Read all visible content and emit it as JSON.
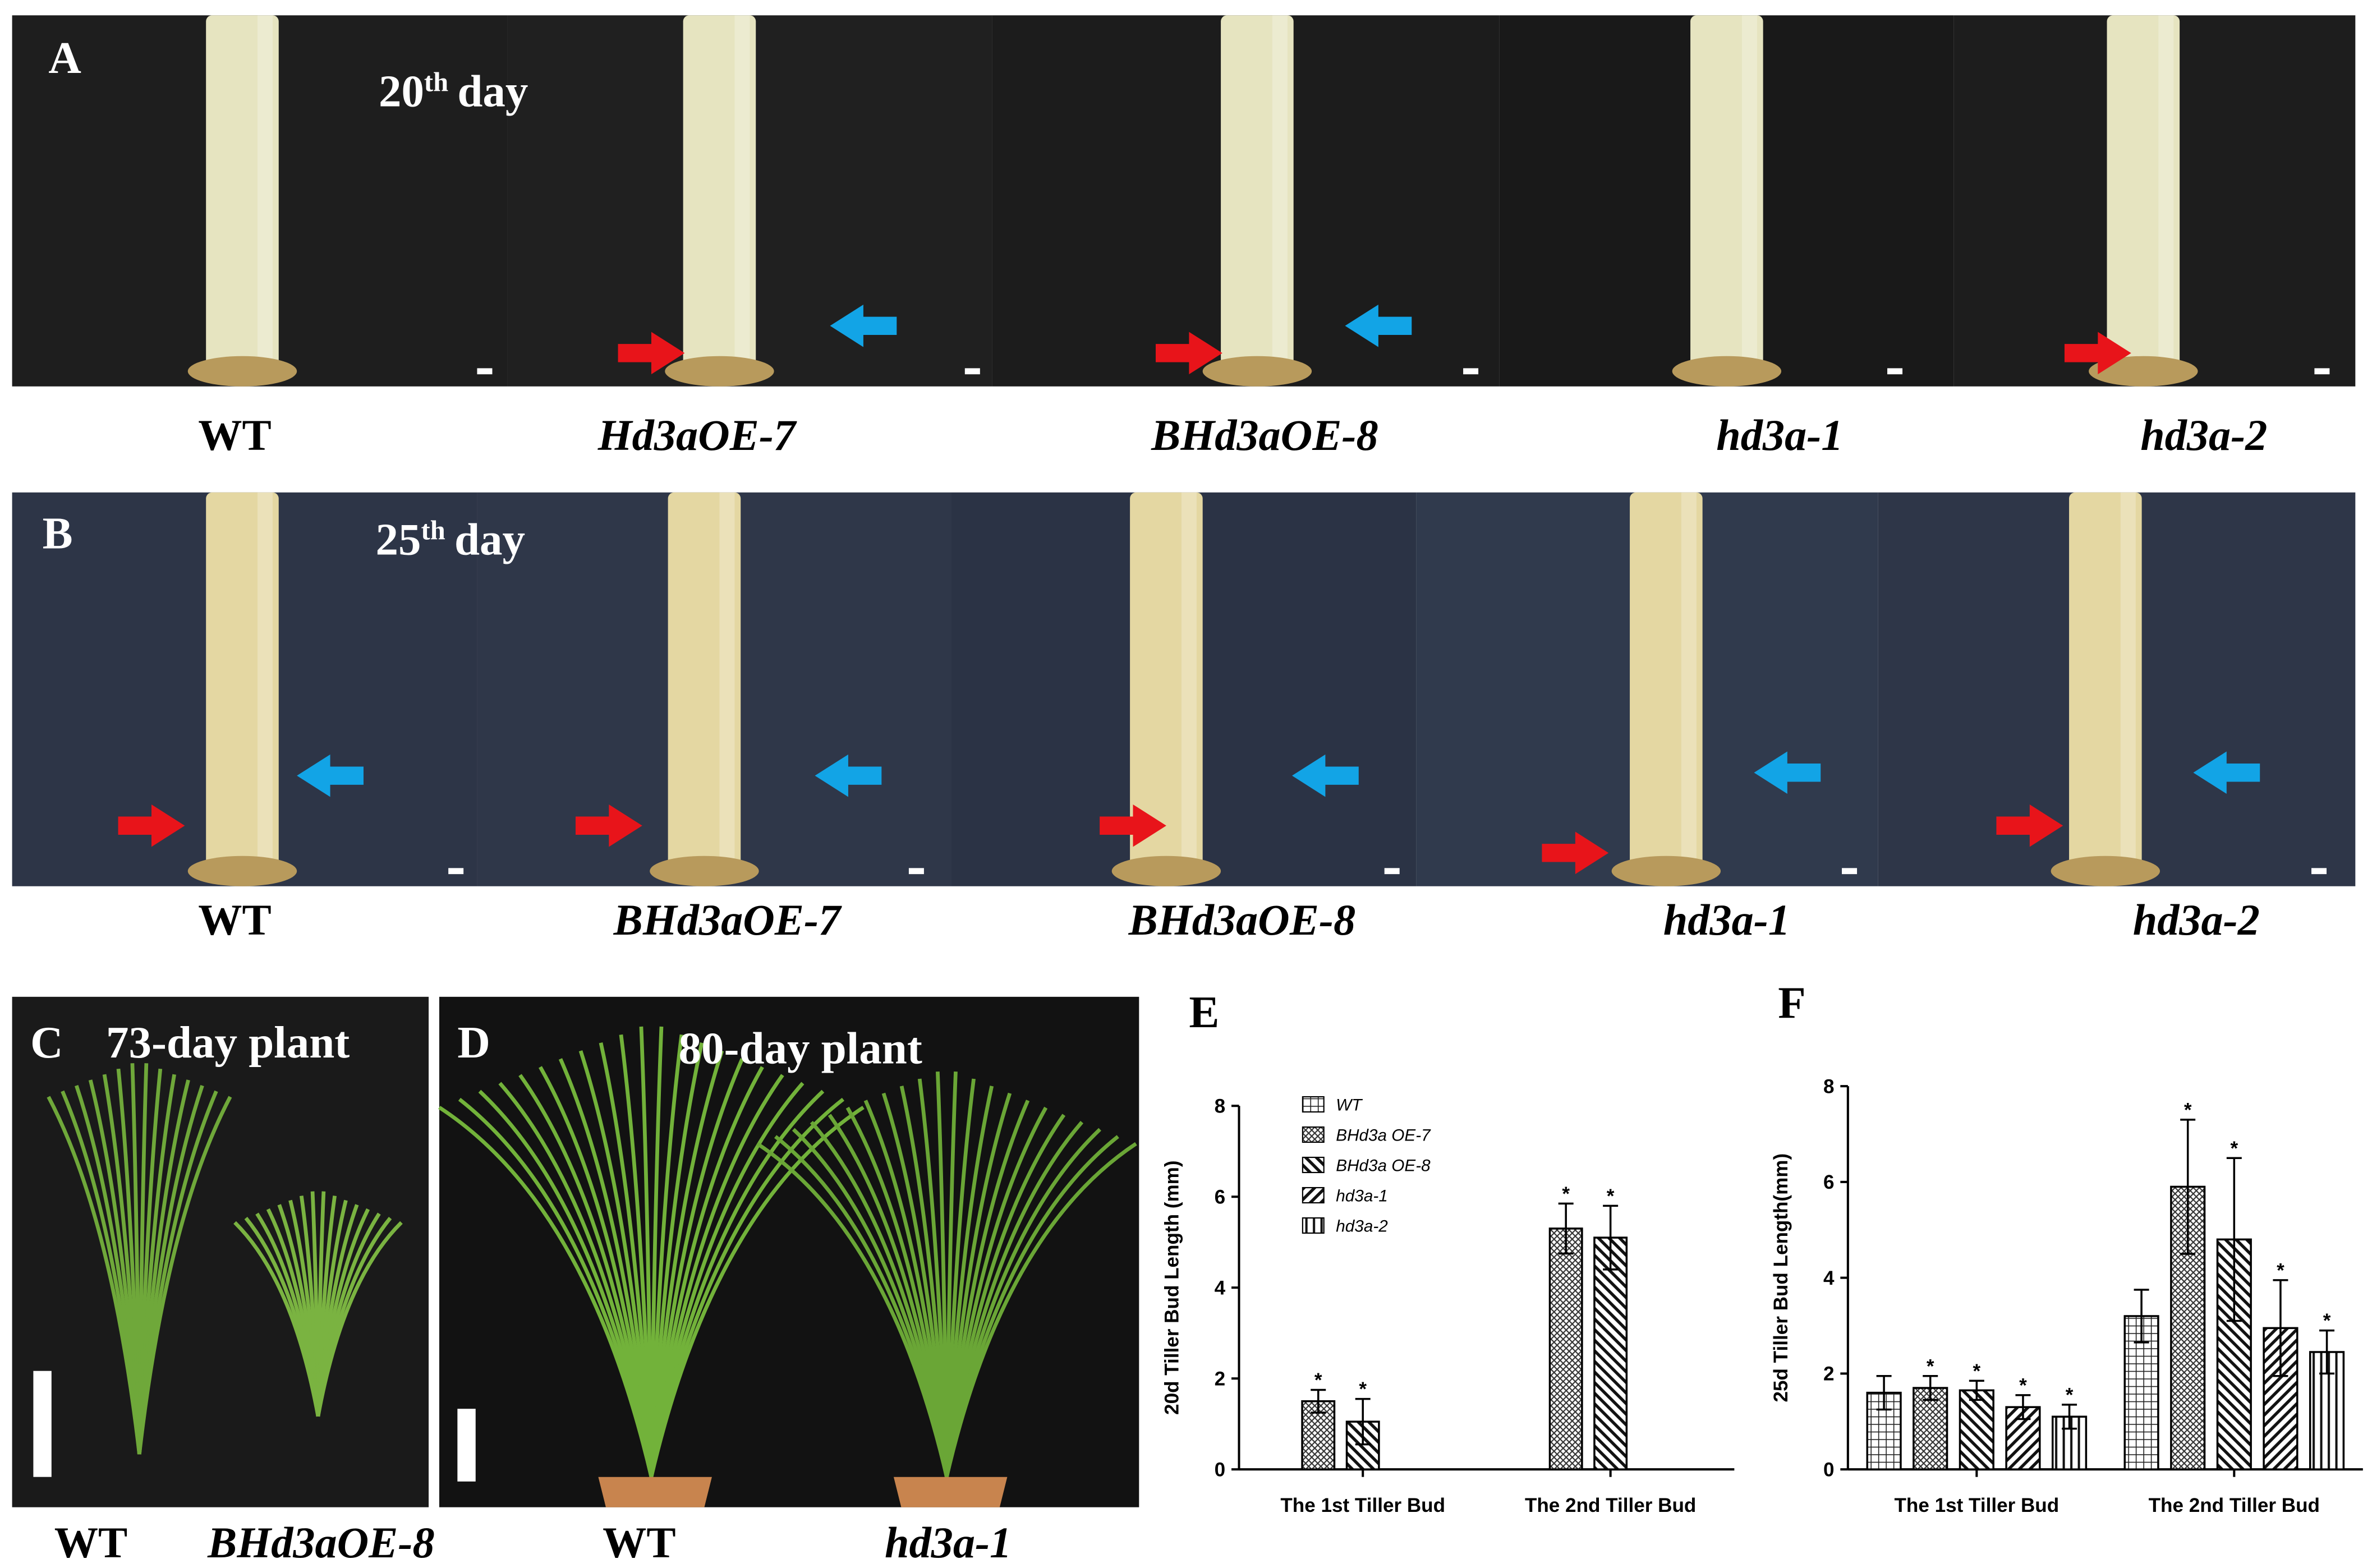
{
  "panel_a": {
    "label": "A",
    "day": "20",
    "day_sup": "th",
    "day_word": "day",
    "genotypes": [
      "WT",
      "Hd3aOE-7",
      "BHd3aOE-8",
      "hd3a-1",
      "hd3a-2"
    ]
  },
  "panel_b": {
    "label": "B",
    "day": "25",
    "day_sup": "th",
    "day_word": "day",
    "genotypes": [
      "WT",
      "BHd3aOE-7",
      "BHd3aOE-8",
      "hd3a-1",
      "hd3a-2"
    ]
  },
  "panel_c": {
    "label": "C",
    "title": "73-day plant",
    "genotypes": [
      "WT",
      "BHd3aOE-8"
    ]
  },
  "panel_d": {
    "label": "D",
    "title": "80-day plant",
    "genotypes": [
      "WT",
      "hd3a-1"
    ]
  },
  "chart_data": [
    {
      "type": "bar",
      "label": "E",
      "ylabel": "20d Tiller Bud Length (mm)",
      "categories": [
        "The 1st Tiller Bud",
        "The 2nd Tiller Bud"
      ],
      "ylim": [
        0,
        8
      ],
      "yticks": [
        0,
        2,
        4,
        6,
        8
      ],
      "legend": "upper left",
      "series": [
        {
          "name": "WT",
          "hatch": "grid",
          "values": [
            null,
            null
          ],
          "errors": [
            null,
            null
          ],
          "marks": [
            null,
            null
          ]
        },
        {
          "name": "BHd3a OE-7",
          "hatch": "cross",
          "values": [
            1.5,
            5.3
          ],
          "errors": [
            0.25,
            0.55
          ],
          "marks": [
            "*",
            "*"
          ]
        },
        {
          "name": "BHd3a OE-8",
          "hatch": "back",
          "values": [
            1.05,
            5.1
          ],
          "errors": [
            0.5,
            0.7
          ],
          "marks": [
            "*",
            "*"
          ]
        },
        {
          "name": "hd3a-1",
          "hatch": "fwd",
          "values": [
            null,
            null
          ],
          "errors": [
            null,
            null
          ],
          "marks": [
            null,
            null
          ]
        },
        {
          "name": "hd3a-2",
          "hatch": "vert",
          "values": [
            null,
            null
          ],
          "errors": [
            null,
            null
          ],
          "marks": [
            null,
            null
          ]
        }
      ]
    },
    {
      "type": "bar",
      "label": "F",
      "ylabel": "25d Tiller Bud Length(mm)",
      "categories": [
        "The 1st Tiller Bud",
        "The 2nd Tiller Bud"
      ],
      "ylim": [
        0,
        8
      ],
      "yticks": [
        0,
        2,
        4,
        6,
        8
      ],
      "series": [
        {
          "hatch": "grid",
          "values": [
            1.6,
            3.2
          ],
          "errors": [
            0.35,
            0.55
          ],
          "marks": [
            null,
            null
          ]
        },
        {
          "hatch": "cross",
          "values": [
            1.7,
            5.9
          ],
          "errors": [
            0.25,
            1.4
          ],
          "marks": [
            "*",
            "*"
          ]
        },
        {
          "hatch": "back",
          "values": [
            1.65,
            4.8
          ],
          "errors": [
            0.2,
            1.7
          ],
          "marks": [
            "*",
            "*"
          ]
        },
        {
          "hatch": "fwd",
          "values": [
            1.3,
            2.95
          ],
          "errors": [
            0.25,
            1.0
          ],
          "marks": [
            "*",
            "*"
          ]
        },
        {
          "hatch": "vert",
          "values": [
            1.1,
            2.45
          ],
          "errors": [
            0.25,
            0.45
          ],
          "marks": [
            "*",
            "*"
          ]
        }
      ]
    }
  ]
}
